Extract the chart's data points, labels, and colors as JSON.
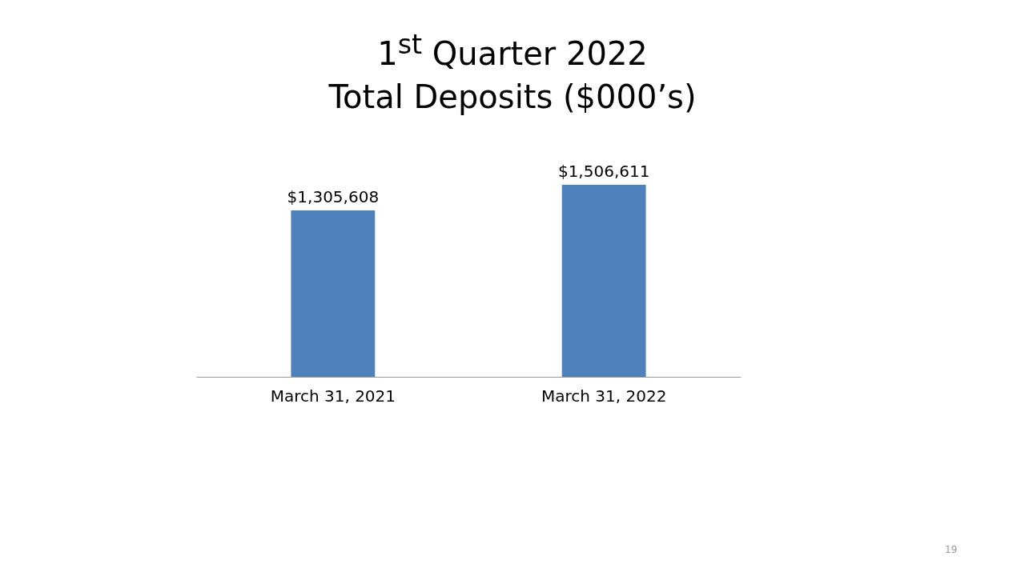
{
  "chart_data": {
    "type": "bar",
    "title": "1$^{st}$ Quarter 2022",
    "subtitle": "Total Deposits ($000’s)",
    "categories": [
      "March 31, 2021",
      "March 31, 2022"
    ],
    "values": [
      1305608,
      1506611
    ],
    "value_labels": [
      "$1,305,608",
      "$1,506,611"
    ],
    "color": "#4f81bd",
    "annotations": [
      "19"
    ]
  }
}
